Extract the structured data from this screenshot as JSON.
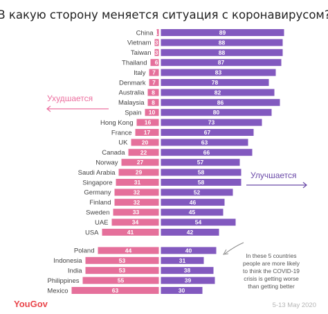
{
  "page": {
    "title": "В какую сторону меняется ситуация с коронавирусом?",
    "label_worse": "Ухудшается",
    "label_better": "Улучшается",
    "note_lines": [
      "In these 5 countries",
      "people are more likely",
      "to think the COVID-19",
      "crisis is getting worse",
      "than getting better"
    ],
    "logo": "YouGov",
    "date": "5-13 May 2020"
  },
  "colors": {
    "worse": "#e5709b",
    "better": "#8259bf",
    "worse_label": "#ec6f9f",
    "better_label": "#6b4aa8"
  },
  "chart_data": {
    "type": "bar",
    "orientation": "diverging-horizontal",
    "categories": [
      "China",
      "Vietnam",
      "Taiwan",
      "Thailand",
      "Italy",
      "Denmark",
      "Australia",
      "Malaysia",
      "Spain",
      "Hong Kong",
      "France",
      "UK",
      "Canada",
      "Norway",
      "Saudi Arabia",
      "Singapore",
      "Germany",
      "Finland",
      "Sweden",
      "UAE",
      "USA",
      "Poland",
      "Indonesia",
      "India",
      "Philippines",
      "Mexico"
    ],
    "series": [
      {
        "name": "Ухудшается",
        "values": [
          1,
          3,
          3,
          6,
          7,
          7,
          8,
          8,
          10,
          16,
          17,
          20,
          22,
          27,
          29,
          31,
          32,
          32,
          33,
          34,
          41,
          44,
          53,
          53,
          55,
          63
        ]
      },
      {
        "name": "Улучшается",
        "values": [
          89,
          88,
          88,
          87,
          83,
          78,
          82,
          86,
          80,
          73,
          67,
          63,
          66,
          57,
          58,
          58,
          52,
          46,
          45,
          54,
          42,
          40,
          31,
          38,
          39,
          30
        ]
      }
    ],
    "groups": [
      {
        "categories": [
          "China",
          "Vietnam",
          "Taiwan",
          "Thailand",
          "Italy",
          "Denmark",
          "Australia",
          "Malaysia",
          "Spain",
          "Hong Kong",
          "France",
          "UK",
          "Canada",
          "Norway",
          "Saudi Arabia",
          "Singapore",
          "Germany",
          "Finland",
          "Sweden",
          "UAE",
          "USA"
        ]
      },
      {
        "categories": [
          "Poland",
          "Indonesia",
          "India",
          "Philippines",
          "Mexico"
        ]
      }
    ]
  }
}
